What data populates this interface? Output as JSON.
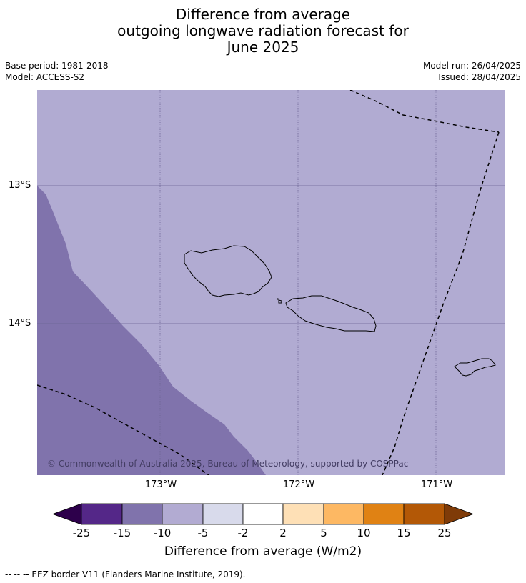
{
  "title": {
    "line1": "Difference from average",
    "line2": "outgoing longwave radiation forecast for",
    "line3": "June 2025"
  },
  "meta": {
    "base_period": "Base period: 1981-2018",
    "model": "Model: ACCESS-S2",
    "model_run": "Model run: 26/04/2025",
    "issued": "Issued: 28/04/2025"
  },
  "map": {
    "copyright": "© Commonwealth of Australia 2025, Bureau of Meteorology, supported by COSPPac",
    "lat_labels": [
      "13°S",
      "14°S"
    ],
    "lon_labels": [
      "173°W",
      "172°W",
      "171°W"
    ],
    "region_colors": {
      "main": "#b1abd2",
      "lower_west": "#8073ac"
    }
  },
  "colorbar": {
    "label": "Difference from average (W/m2)",
    "ticks": [
      "-25",
      "-15",
      "-10",
      "-5",
      "-2",
      "2",
      "5",
      "10",
      "15",
      "25"
    ],
    "colors": [
      "#2d004b",
      "#542788",
      "#8073ac",
      "#b2abd2",
      "#d8daeb",
      "#ffffff",
      "#fee0b6",
      "#fdb863",
      "#e08214",
      "#b35806",
      "#7f3b08"
    ]
  },
  "footnote": "--  --  -- EEZ border V11 (Flanders Marine Institute, 2019)."
}
